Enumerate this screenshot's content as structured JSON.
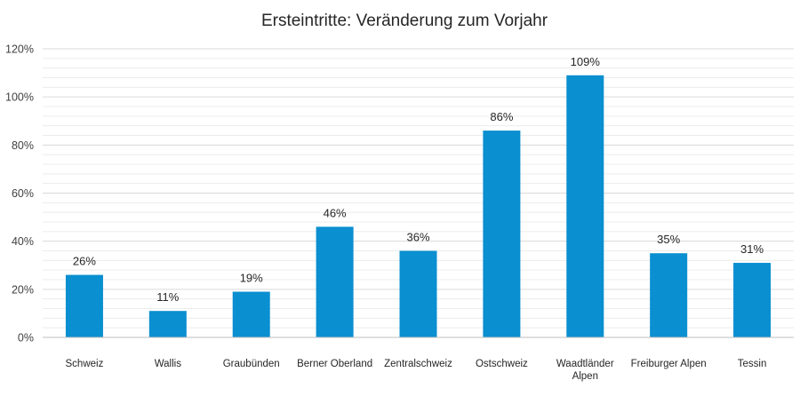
{
  "chart_data": {
    "type": "bar",
    "title": "Ersteintritte: Veränderung zum Vorjahr",
    "xlabel": "",
    "ylabel": "",
    "categories": [
      "Schweiz",
      "Wallis",
      "Graubünden",
      "Berner Oberland",
      "Zentralschweiz",
      "Ostschweiz",
      "Waadtländer Alpen",
      "Freiburger Alpen",
      "Tessin"
    ],
    "category_label_lines": [
      [
        "Schweiz"
      ],
      [
        "Wallis"
      ],
      [
        "Graubünden"
      ],
      [
        "Berner Oberland"
      ],
      [
        "Zentralschweiz"
      ],
      [
        "Ostschweiz"
      ],
      [
        "Waadtländer",
        "Alpen"
      ],
      [
        "Freiburger Alpen"
      ],
      [
        "Tessin"
      ]
    ],
    "values": [
      26,
      11,
      19,
      46,
      36,
      86,
      109,
      35,
      31
    ],
    "data_labels": [
      "26%",
      "11%",
      "19%",
      "46%",
      "36%",
      "86%",
      "109%",
      "35%",
      "31%"
    ],
    "ylim": [
      0,
      120
    ],
    "yticks": [
      0,
      20,
      40,
      60,
      80,
      100,
      120
    ],
    "ytick_labels": [
      "0%",
      "20%",
      "40%",
      "60%",
      "80%",
      "100%",
      "120%"
    ],
    "grid": true,
    "minor_grid": true,
    "legend": "none",
    "bar_color": "#0a8fd0",
    "grid_color": "#d9d9d9"
  }
}
